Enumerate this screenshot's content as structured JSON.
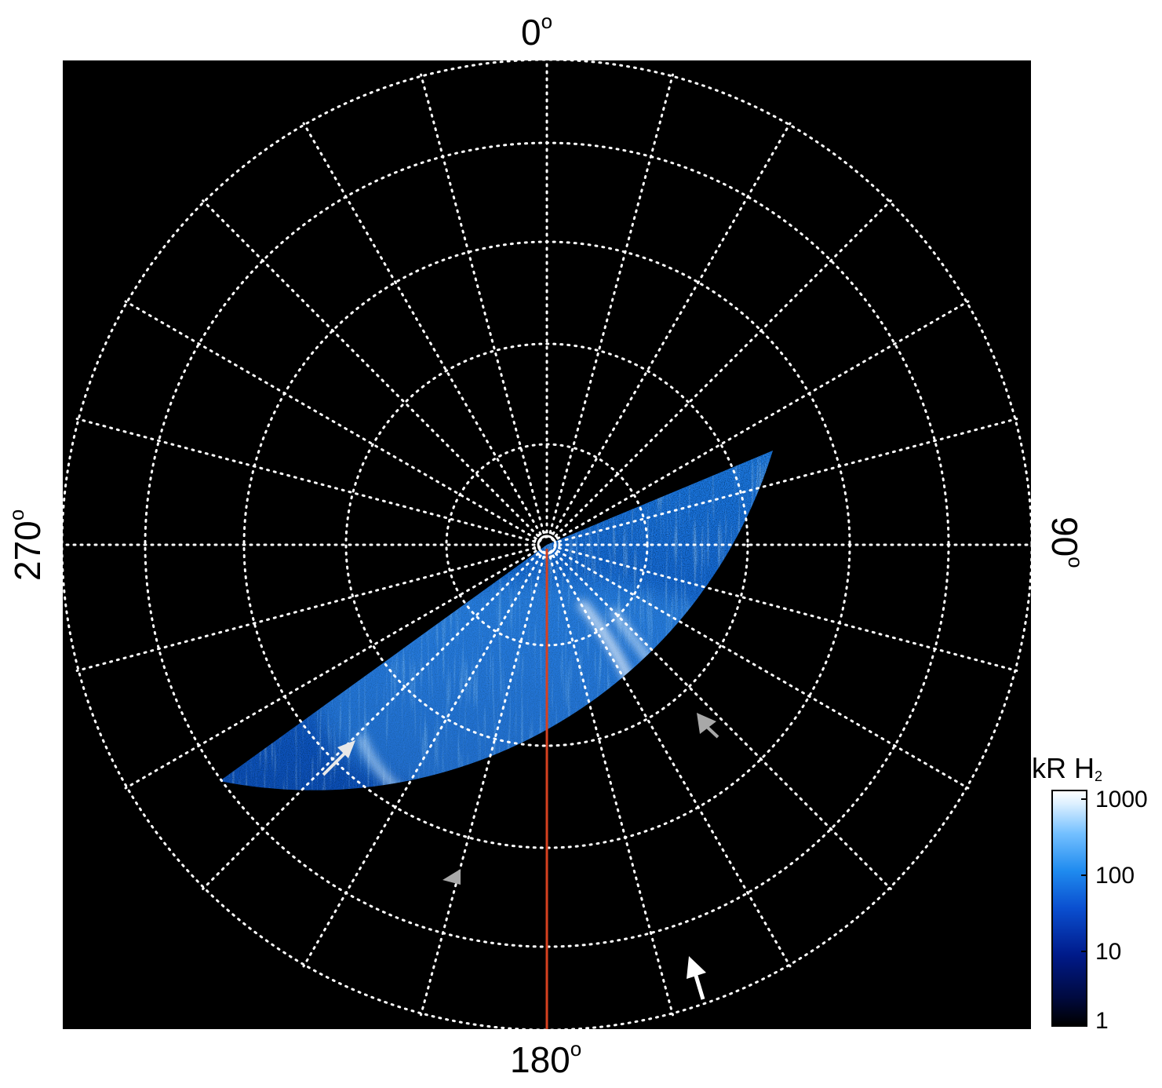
{
  "axis_labels": {
    "top": {
      "value": "0",
      "unit": "o"
    },
    "bottom": {
      "value": "180",
      "unit": "o"
    },
    "left": {
      "value": "270",
      "unit": "o"
    },
    "right": {
      "value": "90",
      "unit": "o"
    }
  },
  "colorbar": {
    "title": "kR H",
    "title_sub": "2",
    "ticks": [
      "1000",
      "100",
      "10",
      "1"
    ],
    "scale": "log"
  },
  "image": {
    "description_tags": [
      "polar-projection",
      "aurora-emission",
      "uv-brightness"
    ],
    "colors": {
      "background": "#000000",
      "grid": "#ffffff",
      "meridian_line": "#d6401f",
      "arrow_white": "#ffffff",
      "arrow_gray": "#a8a8a8"
    }
  }
}
